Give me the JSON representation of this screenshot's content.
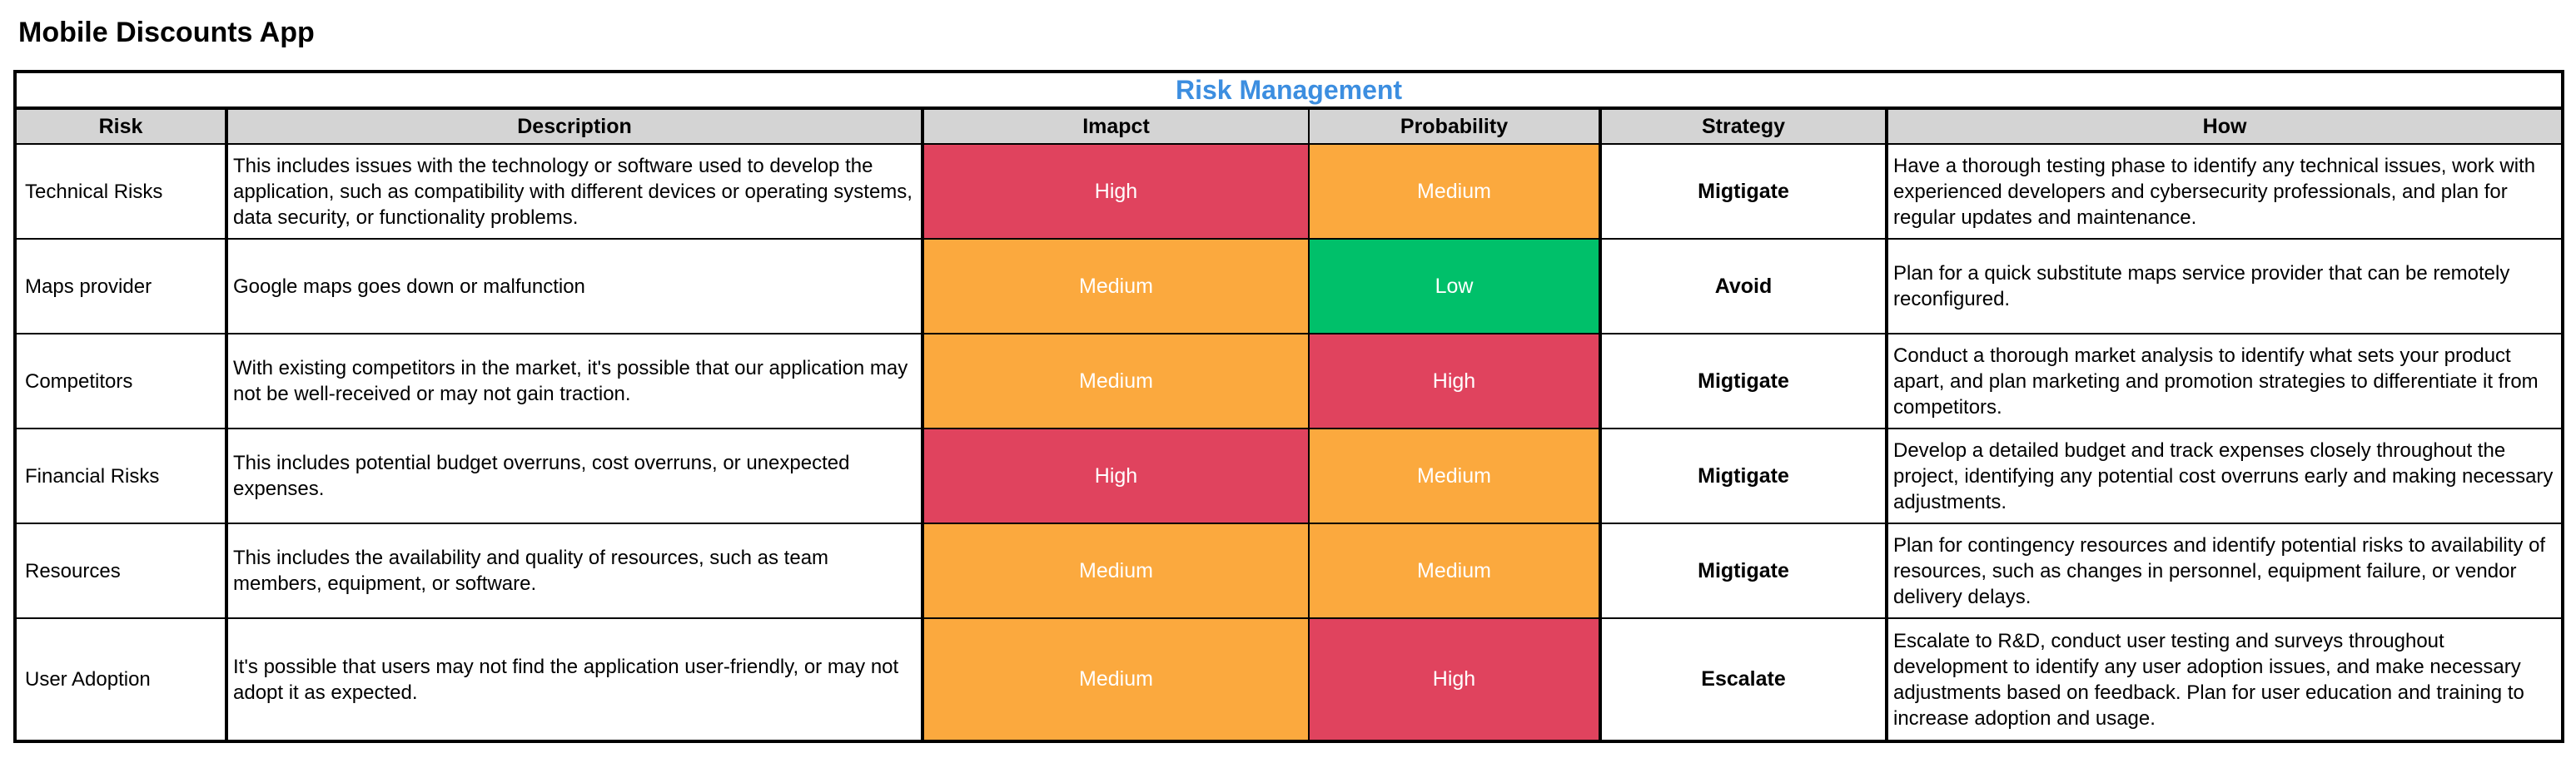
{
  "app_title": "Mobile Discounts App",
  "table": {
    "banner": "Risk Management",
    "headers": {
      "risk": "Risk",
      "description": "Description",
      "impact": "Imapct",
      "probability": "Probability",
      "strategy": "Strategy",
      "how": "How"
    },
    "rows": [
      {
        "risk": "Technical Risks",
        "description": "This includes issues with the technology or software used to develop the application, such as compatibility with different devices or operating systems, data security, or functionality problems.",
        "impact": "High",
        "probability": "Medium",
        "strategy": "Migtigate",
        "how": "Have a thorough testing phase to identify any technical issues, work with experienced developers and cybersecurity professionals, and plan for regular updates and maintenance."
      },
      {
        "risk": "Maps provider",
        "description": "Google maps goes down or malfunction",
        "impact": "Medium",
        "probability": "Low",
        "strategy": "Avoid",
        "how": "Plan for a quick substitute maps service provider that can be remotely reconfigured."
      },
      {
        "risk": "Competitors",
        "description": "With existing competitors in the market, it's possible that our application may not be well-received or may not gain traction.",
        "impact": "Medium",
        "probability": "High",
        "strategy": "Migtigate",
        "how": "Conduct a thorough market analysis to identify what sets your product apart, and plan marketing and promotion strategies to differentiate it from competitors."
      },
      {
        "risk": "Financial Risks",
        "description": "This includes potential budget overruns, cost overruns, or unexpected expenses.",
        "impact": "High",
        "probability": "Medium",
        "strategy": "Migtigate",
        "how": "Develop a detailed budget and track expenses closely throughout the project, identifying any potential cost overruns early and making necessary adjustments."
      },
      {
        "risk": "Resources",
        "description": "This includes the availability and quality of resources, such as team members, equipment, or software.",
        "impact": "Medium",
        "probability": "Medium",
        "strategy": "Migtigate",
        "how": "Plan for contingency resources and identify potential risks to availability of resources, such as changes in personnel, equipment failure, or vendor delivery delays."
      },
      {
        "risk": "User Adoption",
        "description": "It's possible that users may not find the application user-friendly, or may not adopt it as expected.",
        "impact": "Medium",
        "probability": "High",
        "strategy": "Escalate",
        "how": "Escalate to R&D, conduct user testing and surveys throughout development to identify any user adoption issues, and make necessary adjustments based on feedback. Plan for user education and training to increase adoption and usage."
      }
    ]
  },
  "level_colors": {
    "High": "#e0435e",
    "Medium": "#fba93e",
    "Low": "#00c06a"
  }
}
